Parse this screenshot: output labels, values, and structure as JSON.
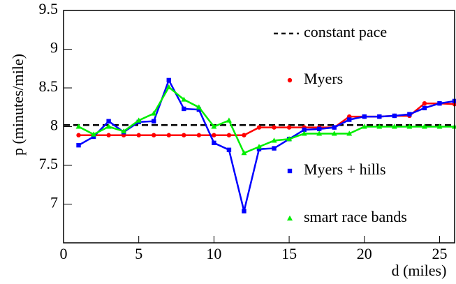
{
  "chart_data": {
    "type": "line",
    "x_label": "d (miles)",
    "y_label": "p (minutes/mile)",
    "xlim": [
      0,
      26
    ],
    "xticks": [
      0,
      5,
      10,
      15,
      20,
      25
    ],
    "ylim": [
      6.5,
      9.5
    ],
    "yticks": [
      7,
      7.5,
      8,
      8.5,
      9,
      9.5
    ],
    "reference_line": {
      "name": "constant pace",
      "value": 8.02,
      "color": "#000000"
    },
    "x": [
      1,
      2,
      3,
      4,
      5,
      6,
      7,
      8,
      9,
      10,
      11,
      12,
      13,
      14,
      15,
      16,
      17,
      18,
      19,
      20,
      21,
      22,
      23,
      24,
      25,
      26
    ],
    "series": [
      {
        "name": "Myers",
        "color": "#ff0000",
        "marker": "circle",
        "values": [
          7.89,
          7.89,
          7.89,
          7.89,
          7.89,
          7.89,
          7.89,
          7.89,
          7.89,
          7.89,
          7.89,
          7.89,
          7.99,
          7.99,
          7.99,
          7.99,
          7.99,
          7.99,
          8.13,
          8.13,
          8.13,
          8.14,
          8.14,
          8.3,
          8.3,
          8.29
        ]
      },
      {
        "name": "Myers + hills",
        "color": "#0000ff",
        "marker": "square",
        "values": [
          7.76,
          7.87,
          8.07,
          7.93,
          8.06,
          8.07,
          8.6,
          8.23,
          8.22,
          7.79,
          7.7,
          6.91,
          7.71,
          7.72,
          7.84,
          7.96,
          7.97,
          7.99,
          8.09,
          8.13,
          8.13,
          8.14,
          8.16,
          8.24,
          8.3,
          8.33
        ]
      },
      {
        "name": "smart race bands",
        "color": "#00ee00",
        "marker": "triangle",
        "values": [
          8.0,
          7.9,
          8.0,
          7.94,
          8.08,
          8.17,
          8.51,
          8.35,
          8.25,
          8.0,
          8.08,
          7.66,
          7.74,
          7.82,
          7.84,
          7.91,
          7.91,
          7.91,
          7.91,
          8.0,
          8.0,
          8.0,
          8.0,
          8.0,
          8.0,
          8.0
        ]
      }
    ]
  }
}
